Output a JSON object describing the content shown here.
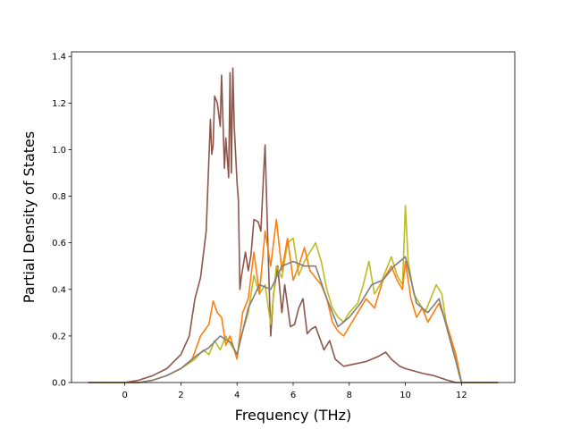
{
  "chart_data": {
    "type": "line",
    "title": "",
    "xlabel": "Frequency (THz)",
    "ylabel": "Partial Density of States",
    "xlim": [
      -1.9,
      13.9
    ],
    "ylim": [
      0.0,
      1.42
    ],
    "x_ticks": [
      0,
      2,
      4,
      6,
      8,
      10,
      12
    ],
    "y_ticks": [
      0.0,
      0.2,
      0.4,
      0.6,
      0.8,
      1.0,
      1.2,
      1.4
    ],
    "x_tick_labels": [
      "0",
      "2",
      "4",
      "6",
      "8",
      "10",
      "12"
    ],
    "y_tick_labels": [
      "0.0",
      "0.2",
      "0.4",
      "0.6",
      "0.8",
      "1.0",
      "1.2",
      "1.4"
    ],
    "grid": false,
    "legend": "none",
    "series": [
      {
        "color": "#8c564b",
        "x": [
          -1.3,
          0.0,
          0.5,
          1.0,
          1.5,
          2.0,
          2.3,
          2.5,
          2.7,
          2.9,
          3.05,
          3.1,
          3.15,
          3.2,
          3.3,
          3.4,
          3.45,
          3.55,
          3.6,
          3.7,
          3.75,
          3.8,
          3.85,
          3.9,
          4.0,
          4.05,
          4.1,
          4.15,
          4.3,
          4.4,
          4.5,
          4.6,
          4.75,
          4.85,
          4.95,
          5.0,
          5.1,
          5.2,
          5.3,
          5.45,
          5.6,
          5.7,
          5.9,
          6.05,
          6.2,
          6.35,
          6.5,
          6.65,
          6.8,
          6.95,
          7.1,
          7.3,
          7.5,
          7.8,
          8.2,
          8.6,
          9.0,
          9.3,
          9.5,
          9.8,
          10.0,
          10.3,
          10.6,
          11.0,
          11.5,
          11.8,
          12.0,
          13.3
        ],
        "y": [
          0.0,
          0.0,
          0.01,
          0.03,
          0.06,
          0.12,
          0.2,
          0.36,
          0.45,
          0.65,
          1.13,
          0.98,
          1.02,
          1.23,
          1.2,
          1.1,
          1.32,
          0.92,
          1.05,
          0.88,
          1.33,
          0.9,
          1.35,
          1.1,
          0.86,
          0.78,
          0.4,
          0.45,
          0.56,
          0.48,
          0.55,
          0.7,
          0.69,
          0.65,
          0.9,
          1.02,
          0.6,
          0.2,
          0.38,
          0.5,
          0.3,
          0.42,
          0.24,
          0.25,
          0.32,
          0.36,
          0.21,
          0.23,
          0.24,
          0.19,
          0.14,
          0.18,
          0.1,
          0.07,
          0.08,
          0.09,
          0.11,
          0.13,
          0.1,
          0.07,
          0.06,
          0.05,
          0.04,
          0.03,
          0.01,
          0.0,
          0.0,
          0.0
        ]
      },
      {
        "color": "#bcbd22",
        "x": [
          -1.3,
          0.5,
          1.0,
          1.5,
          2.0,
          2.5,
          2.8,
          3.0,
          3.2,
          3.4,
          3.6,
          3.8,
          4.0,
          4.2,
          4.4,
          4.6,
          4.8,
          5.0,
          5.2,
          5.4,
          5.6,
          5.8,
          6.0,
          6.2,
          6.4,
          6.6,
          6.8,
          7.0,
          7.2,
          7.4,
          7.6,
          7.8,
          8.0,
          8.3,
          8.5,
          8.7,
          8.9,
          9.1,
          9.3,
          9.5,
          9.7,
          9.9,
          10.0,
          10.1,
          10.3,
          10.5,
          10.7,
          10.9,
          11.1,
          11.3,
          11.5,
          11.7,
          11.9,
          12.0,
          13.3
        ],
        "y": [
          0.0,
          0.0,
          0.01,
          0.03,
          0.06,
          0.1,
          0.14,
          0.12,
          0.18,
          0.14,
          0.2,
          0.16,
          0.12,
          0.22,
          0.3,
          0.46,
          0.38,
          0.42,
          0.25,
          0.5,
          0.45,
          0.6,
          0.62,
          0.46,
          0.52,
          0.56,
          0.6,
          0.52,
          0.4,
          0.32,
          0.28,
          0.26,
          0.3,
          0.34,
          0.42,
          0.52,
          0.38,
          0.42,
          0.48,
          0.54,
          0.46,
          0.42,
          0.76,
          0.52,
          0.38,
          0.34,
          0.3,
          0.36,
          0.42,
          0.38,
          0.22,
          0.16,
          0.04,
          0.0,
          0.0
        ]
      },
      {
        "color": "#ff7f0e",
        "x": [
          -1.3,
          0.5,
          1.0,
          1.5,
          2.0,
          2.4,
          2.7,
          3.0,
          3.15,
          3.3,
          3.45,
          3.6,
          3.75,
          3.9,
          4.0,
          4.2,
          4.4,
          4.6,
          4.8,
          5.0,
          5.2,
          5.4,
          5.6,
          5.8,
          6.0,
          6.2,
          6.4,
          6.6,
          6.8,
          7.0,
          7.2,
          7.4,
          7.6,
          7.8,
          8.0,
          8.3,
          8.6,
          8.9,
          9.2,
          9.5,
          9.7,
          9.9,
          10.0,
          10.2,
          10.4,
          10.6,
          10.8,
          11.0,
          11.2,
          11.5,
          11.8,
          12.0,
          13.3
        ],
        "y": [
          0.0,
          0.0,
          0.01,
          0.03,
          0.06,
          0.1,
          0.2,
          0.25,
          0.35,
          0.3,
          0.28,
          0.16,
          0.2,
          0.14,
          0.1,
          0.3,
          0.36,
          0.56,
          0.38,
          0.65,
          0.5,
          0.7,
          0.48,
          0.62,
          0.44,
          0.5,
          0.58,
          0.48,
          0.45,
          0.42,
          0.36,
          0.26,
          0.22,
          0.2,
          0.24,
          0.3,
          0.36,
          0.32,
          0.44,
          0.5,
          0.44,
          0.4,
          0.52,
          0.36,
          0.28,
          0.32,
          0.26,
          0.3,
          0.34,
          0.24,
          0.12,
          0.0,
          0.0
        ]
      },
      {
        "color": "#7f7f7f",
        "x": [
          -1.3,
          0.5,
          1.0,
          1.5,
          2.0,
          2.6,
          3.0,
          3.4,
          3.8,
          4.0,
          4.4,
          4.8,
          5.2,
          5.6,
          6.0,
          6.4,
          6.8,
          7.2,
          7.6,
          8.0,
          8.4,
          8.8,
          9.2,
          9.6,
          10.0,
          10.4,
          10.8,
          11.2,
          11.6,
          12.0,
          13.3
        ],
        "y": [
          0.0,
          0.0,
          0.01,
          0.03,
          0.06,
          0.12,
          0.15,
          0.2,
          0.17,
          0.12,
          0.32,
          0.42,
          0.4,
          0.5,
          0.52,
          0.5,
          0.5,
          0.36,
          0.24,
          0.28,
          0.34,
          0.42,
          0.44,
          0.5,
          0.54,
          0.34,
          0.3,
          0.36,
          0.18,
          0.0,
          0.0
        ]
      }
    ]
  }
}
